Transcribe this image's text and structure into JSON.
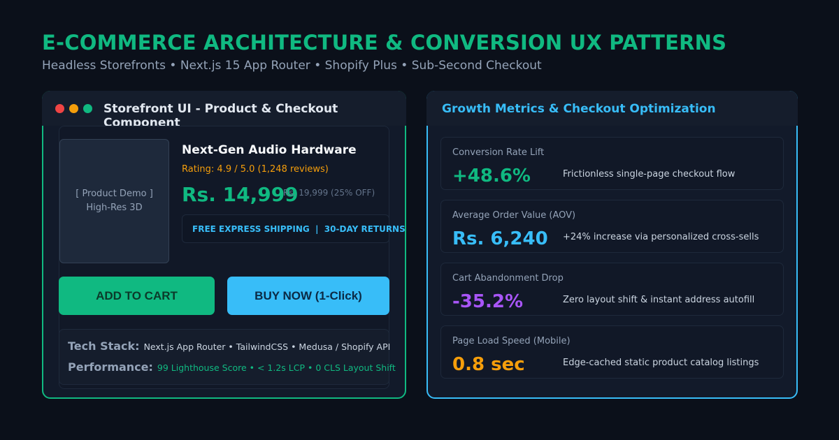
{
  "header": {
    "title": "E-COMMERCE ARCHITECTURE & CONVERSION UX PATTERNS",
    "subtitle": "Headless Storefronts • Next.js 15 App Router • Shopify Plus • Sub-Second Checkout"
  },
  "storefront": {
    "title": "Storefront UI - Product & Checkout Component",
    "image_line1": "[ Product Demo ]",
    "image_line2": "High-Res 3D",
    "product_name": "Next-Gen Audio Hardware",
    "rating": "Rating: 4.9 / 5.0 (1,248 reviews)",
    "price": "Rs. 14,999",
    "old_price": "Rs. 19,999 (25% OFF)",
    "shipping": "FREE EXPRESS SHIPPING  |  30-DAY RETURNS",
    "add_to_cart": "ADD TO CART",
    "buy_now": "BUY NOW (1-Click)",
    "tech_label": "Tech Stack:",
    "tech_value": "Next.js App Router • TailwindCSS • Medusa / Shopify API",
    "perf_label": "Performance:",
    "perf_value": "99 Lighthouse Score • < 1.2s LCP • 0 CLS Layout Shift"
  },
  "metrics": {
    "title": "Growth Metrics & Checkout Optimization",
    "items": [
      {
        "label": "Conversion Rate Lift",
        "value": "+48.6%",
        "desc": "Frictionless single-page checkout flow",
        "color": "#10b981"
      },
      {
        "label": "Average Order Value (AOV)",
        "value": "Rs. 6,240",
        "desc": "+24% increase via personalized cross-sells",
        "color": "#38bdf8"
      },
      {
        "label": "Cart Abandonment Drop",
        "value": "-35.2%",
        "desc": "Zero layout shift & instant address autofill",
        "color": "#a855f7"
      },
      {
        "label": "Page Load Speed (Mobile)",
        "value": "0.8 sec",
        "desc": "Edge-cached static product catalog listings",
        "color": "#f59e0b"
      }
    ]
  }
}
